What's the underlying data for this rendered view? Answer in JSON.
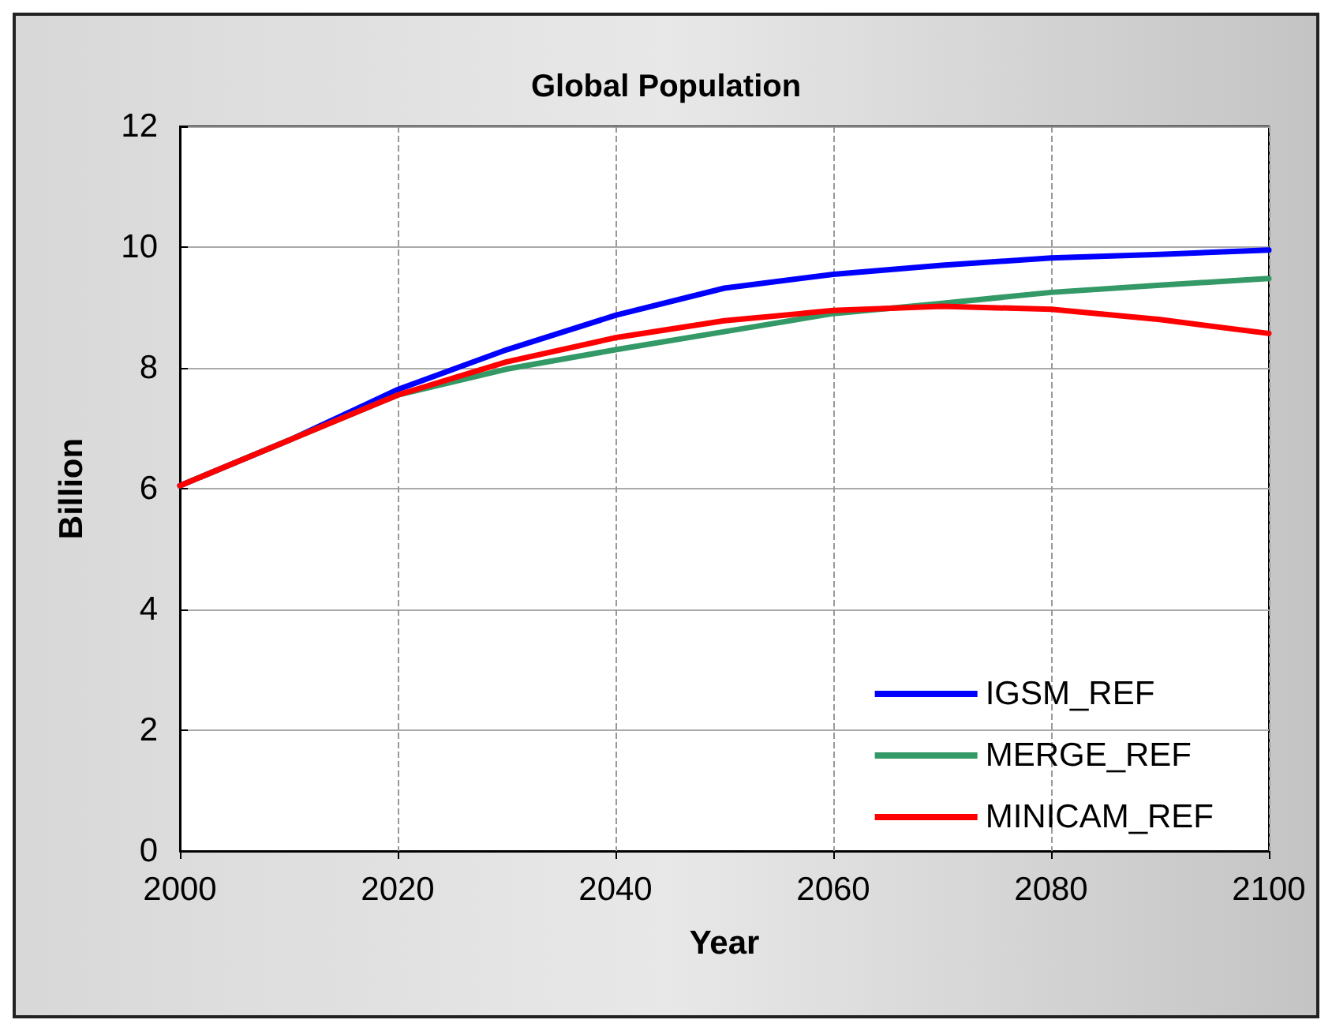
{
  "chart_data": {
    "type": "line",
    "title": "Global Population",
    "xlabel": "Year",
    "ylabel": "Billion",
    "x": [
      2000,
      2010,
      2020,
      2030,
      2040,
      2050,
      2060,
      2070,
      2080,
      2090,
      2100
    ],
    "series": [
      {
        "name": "IGSM_REF",
        "color": "#0000ff",
        "values": [
          6.05,
          6.8,
          7.64,
          8.3,
          8.87,
          9.32,
          9.55,
          9.7,
          9.82,
          9.88,
          9.95
        ]
      },
      {
        "name": "MERGE_REF",
        "color": "#339966",
        "values": [
          6.05,
          6.8,
          7.55,
          7.98,
          8.3,
          8.6,
          8.9,
          9.07,
          9.25,
          9.37,
          9.48
        ]
      },
      {
        "name": "MINICAM_REF",
        "color": "#ff0000",
        "values": [
          6.05,
          6.8,
          7.55,
          8.1,
          8.5,
          8.78,
          8.95,
          9.02,
          8.97,
          8.8,
          8.57
        ]
      }
    ],
    "xlim": [
      2000,
      2100
    ],
    "xticks": [
      2000,
      2020,
      2040,
      2060,
      2080,
      2100
    ],
    "ylim": [
      0,
      12
    ],
    "yticks": [
      0,
      2,
      4,
      6,
      8,
      10,
      12
    ],
    "grid": true,
    "legend": "bottom right",
    "marker": "none",
    "line_style": "solid"
  }
}
